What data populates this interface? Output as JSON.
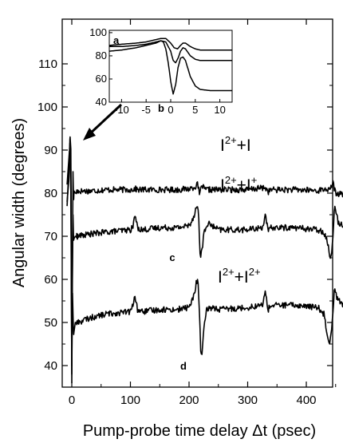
{
  "chart_data": {
    "type": "line",
    "xlabel": "Pump-probe time delay Δt (psec)",
    "ylabel": "Angular width (degrees)",
    "xlim": [
      -10,
      485
    ],
    "ylim": [
      36,
      110
    ],
    "xticks": [
      "0",
      "100",
      "200",
      "300",
      "400"
    ],
    "yticks": [
      "40",
      "50",
      "60",
      "70",
      "80",
      "90",
      "100",
      "110"
    ],
    "grid": false,
    "series": [
      {
        "name": "I²⁺+I",
        "label_base": "I",
        "label_sup": "2+",
        "label_mid": "+I",
        "label_sup2": "",
        "baseline": 80.5,
        "x": [
          -8,
          -5,
          -3,
          -1.5,
          0,
          1,
          2,
          3,
          4,
          6,
          10,
          30,
          60,
          100,
          108,
          112,
          120,
          150,
          180,
          200,
          210,
          215,
          218,
          222,
          226,
          230,
          250,
          300,
          330,
          335,
          340,
          380,
          420,
          435,
          440,
          445,
          450,
          460,
          485
        ],
        "y": [
          78,
          83,
          93.5,
          90,
          36,
          60,
          85,
          78,
          80.5,
          80,
          80.5,
          80.5,
          80.8,
          80.8,
          81,
          80.8,
          80.8,
          80.8,
          80.8,
          81,
          81.5,
          82,
          79.5,
          82,
          80.8,
          80.8,
          80.8,
          80.8,
          81.3,
          80.3,
          80.8,
          80.8,
          80.6,
          81,
          80.5,
          82.5,
          80,
          79.8,
          79.8
        ]
      },
      {
        "name": "I²⁺+I⁺",
        "label_base": "I",
        "label_sup": "2+",
        "label_mid": "+I",
        "label_sup2": "+",
        "baseline": 71.5,
        "x": [
          -8,
          -5,
          -3,
          -1.5,
          0,
          1,
          2,
          3,
          4,
          6,
          10,
          30,
          60,
          100,
          104,
          108,
          112,
          120,
          150,
          180,
          200,
          208,
          212,
          216,
          219,
          222,
          226,
          232,
          250,
          300,
          325,
          330,
          335,
          340,
          380,
          420,
          430,
          436,
          440,
          444,
          448,
          455,
          470,
          485
        ],
        "y": [
          77,
          86,
          90,
          85,
          40,
          62,
          75,
          69,
          69.5,
          70,
          70,
          70.5,
          71,
          71.5,
          72,
          75,
          72,
          71.5,
          72,
          72,
          72.5,
          74.5,
          77,
          76,
          65,
          67,
          71,
          73,
          71.5,
          71.5,
          72,
          75,
          71,
          72,
          72,
          71.5,
          71,
          69,
          65,
          67,
          77,
          73,
          72.5,
          72.5
        ]
      },
      {
        "name": "I²⁺+I²⁺",
        "label_base": "I",
        "label_sup": "2+",
        "label_mid": "+I",
        "label_sup2": "2+",
        "baseline": 52,
        "x": [
          -8,
          -5,
          -3,
          -1.5,
          0,
          1,
          2,
          3,
          4,
          6,
          10,
          30,
          60,
          100,
          104,
          108,
          112,
          120,
          150,
          180,
          200,
          208,
          212,
          215,
          218,
          220,
          222,
          225,
          230,
          240,
          250,
          300,
          325,
          330,
          335,
          340,
          380,
          420,
          430,
          435,
          440,
          444,
          448,
          452,
          458,
          470,
          485
        ],
        "y": [
          82,
          88,
          92,
          80,
          38,
          58,
          52,
          47,
          48,
          50,
          50,
          51,
          52,
          52.5,
          54,
          56,
          53,
          52.5,
          53,
          53,
          53.5,
          56,
          59,
          60,
          52,
          43,
          42,
          48,
          53,
          53.5,
          53,
          53.5,
          54,
          57,
          53,
          54,
          54,
          53.5,
          52,
          48,
          45,
          50,
          58,
          56,
          54.5,
          54,
          54
        ]
      }
    ],
    "annotations": [
      "a",
      "b",
      "c",
      "d"
    ],
    "inset": {
      "xlim": [
        -12.5,
        12.5
      ],
      "ylim": [
        40,
        102
      ],
      "xticks": [
        "-10",
        "-5",
        "0",
        "5",
        "10"
      ],
      "yticks": [
        "40",
        "60",
        "80",
        "100"
      ],
      "series": [
        {
          "x": [
            -12.5,
            -10,
            -7,
            -5,
            -3,
            -2,
            -1,
            0,
            0.7,
            1.4,
            2,
            2.5,
            3,
            4,
            5,
            6,
            8,
            12.5
          ],
          "y": [
            89,
            90,
            91,
            92,
            94,
            95,
            95,
            91,
            87,
            86,
            89,
            91,
            91,
            88,
            86,
            85,
            85,
            85
          ]
        },
        {
          "x": [
            -12.5,
            -10,
            -7,
            -5,
            -3,
            -2,
            -1,
            0,
            0.5,
            1,
            1.5,
            2,
            2.5,
            3,
            3.5,
            4,
            5,
            6,
            8,
            12.5
          ],
          "y": [
            84,
            85,
            87,
            89,
            91,
            93,
            92,
            84,
            76,
            74,
            78,
            84,
            87,
            86,
            83,
            80,
            77,
            76,
            76,
            76
          ]
        },
        {
          "x": [
            -12.5,
            -10,
            -7,
            -5,
            -3,
            -2,
            -1.5,
            -1,
            -0.5,
            0,
            0.5,
            1,
            1.5,
            2,
            2.5,
            3,
            3.5,
            4,
            5,
            6,
            8,
            12.5
          ],
          "y": [
            88,
            88,
            89,
            90,
            92,
            93,
            92,
            86,
            74,
            58,
            47,
            55,
            70,
            78,
            79,
            76,
            69,
            62,
            54,
            51,
            50,
            50
          ]
        }
      ]
    },
    "colors": {
      "line": "#000000",
      "background": "#ffffff"
    }
  }
}
